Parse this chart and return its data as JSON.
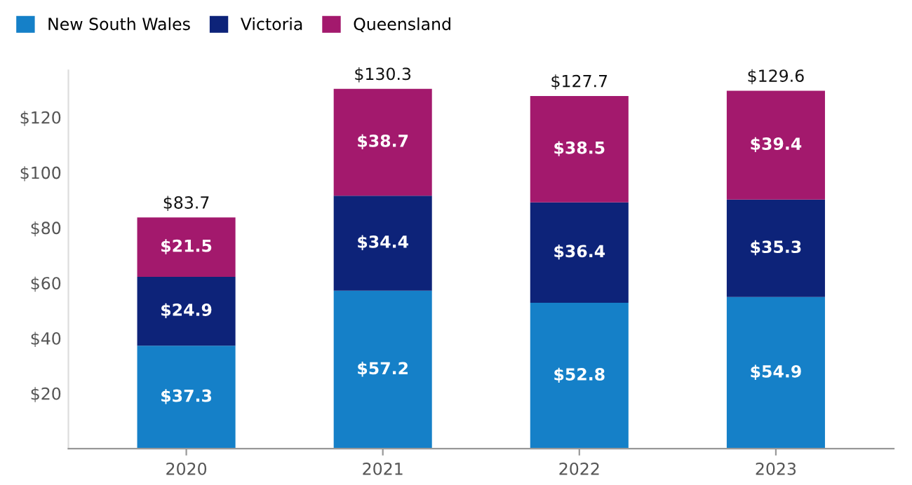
{
  "chart_data": {
    "type": "bar",
    "stacked": true,
    "categories": [
      "2020",
      "2021",
      "2022",
      "2023"
    ],
    "series": [
      {
        "name": "New South Wales",
        "color": "#1580c8",
        "values": [
          37.3,
          57.2,
          52.8,
          54.9
        ],
        "value_labels": [
          "$37.3",
          "$57.2",
          "$52.8",
          "$54.9"
        ]
      },
      {
        "name": "Victoria",
        "color": "#0d2379",
        "values": [
          24.9,
          34.4,
          36.4,
          35.3
        ],
        "value_labels": [
          "$24.9",
          "$34.4",
          "$36.4",
          "$35.3"
        ]
      },
      {
        "name": "Queensland",
        "color": "#a3196d",
        "values": [
          21.5,
          38.7,
          38.5,
          39.4
        ],
        "value_labels": [
          "$21.5",
          "$38.7",
          "$38.5",
          "$39.4"
        ]
      }
    ],
    "totals": [
      "$83.7",
      "$130.3",
      "$127.7",
      "$129.6"
    ],
    "ylim": [
      0,
      137
    ],
    "yticks": [
      {
        "value": 20,
        "label": "$20"
      },
      {
        "value": 40,
        "label": "$40"
      },
      {
        "value": 60,
        "label": "$60"
      },
      {
        "value": 80,
        "label": "$80"
      },
      {
        "value": 100,
        "label": "$100"
      },
      {
        "value": 120,
        "label": "$120"
      }
    ],
    "grid": false,
    "legend": "top left"
  }
}
